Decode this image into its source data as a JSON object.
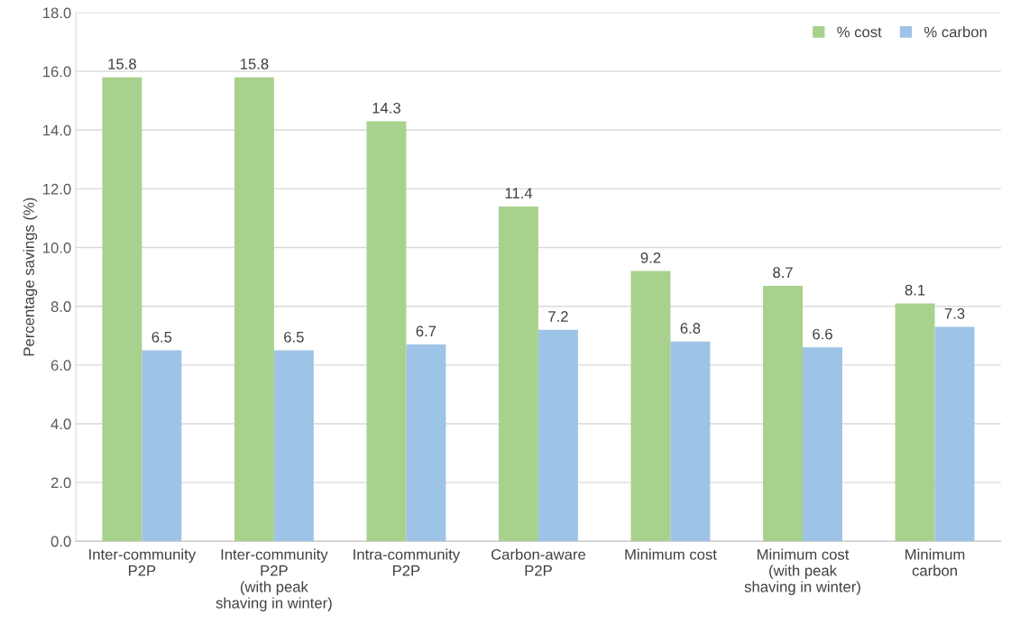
{
  "chart_data": {
    "type": "bar",
    "categories": [
      "Inter-community\nP2P",
      "Inter-community\nP2P\n(with peak\nshaving in winter)",
      "Intra-community\nP2P",
      "Carbon-aware\nP2P",
      "Minimum cost",
      "Minimum cost\n(with peak\nshaving in winter)",
      "Minimum\ncarbon"
    ],
    "series": [
      {
        "name": "% cost",
        "color": "#a9d18e",
        "values": [
          15.8,
          15.8,
          14.3,
          11.4,
          9.2,
          8.7,
          8.1
        ]
      },
      {
        "name": "% carbon",
        "color": "#9dc3e6",
        "values": [
          6.5,
          6.5,
          6.7,
          7.2,
          6.8,
          6.6,
          7.3
        ]
      }
    ],
    "ylabel": "Percentage savings (%)",
    "ylim": [
      0,
      18
    ],
    "yticks": [
      {
        "value": 0,
        "label": "0.0"
      },
      {
        "value": 2,
        "label": "2.0"
      },
      {
        "value": 4,
        "label": "4.0"
      },
      {
        "value": 6,
        "label": "6.0"
      },
      {
        "value": 8,
        "label": "8.0"
      },
      {
        "value": 10,
        "label": "10.0"
      },
      {
        "value": 12,
        "label": "12.0"
      },
      {
        "value": 14,
        "label": "14.0"
      },
      {
        "value": 16,
        "label": "16.0"
      },
      {
        "value": 18,
        "label": "18.0"
      }
    ],
    "grid": "y",
    "legend": "top right",
    "data_labels": true
  }
}
